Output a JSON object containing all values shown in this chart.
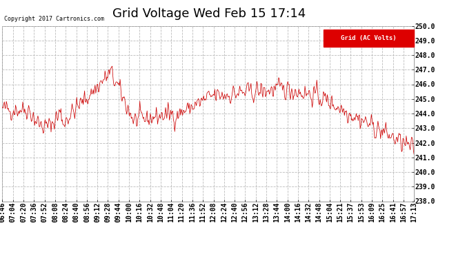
{
  "title": "Grid Voltage Wed Feb 15 17:14",
  "copyright": "Copyright 2017 Cartronics.com",
  "legend_label": "Grid (AC Volts)",
  "legend_bg": "#dd0000",
  "legend_fg": "#ffffff",
  "line_color": "#cc0000",
  "bg_color": "#ffffff",
  "plot_bg": "#ffffff",
  "grid_color": "#bbbbbb",
  "ylim": [
    238.0,
    250.0
  ],
  "ytick_step": 1.0,
  "title_fontsize": 13,
  "axis_fontsize": 7,
  "x_tick_labels": [
    "06:46",
    "07:04",
    "07:20",
    "07:36",
    "07:52",
    "08:08",
    "08:24",
    "08:40",
    "08:56",
    "09:12",
    "09:28",
    "09:44",
    "10:00",
    "10:16",
    "10:32",
    "10:48",
    "11:04",
    "11:20",
    "11:36",
    "11:52",
    "12:08",
    "12:24",
    "12:40",
    "12:56",
    "13:12",
    "13:28",
    "13:44",
    "14:00",
    "14:16",
    "14:32",
    "14:48",
    "15:04",
    "15:21",
    "15:37",
    "15:53",
    "16:09",
    "16:25",
    "16:41",
    "16:57",
    "17:13"
  ],
  "seed": 42
}
